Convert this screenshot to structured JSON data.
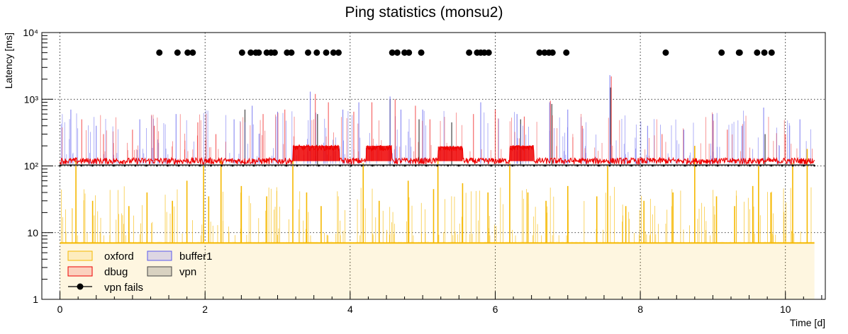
{
  "chart_data": {
    "type": "line",
    "title": "Ping statistics (monsu2)",
    "xlabel": "Time [d]",
    "ylabel": "Latency [ms]",
    "xlim": [
      -0.25,
      10.55
    ],
    "ylim": [
      1,
      10000
    ],
    "yscale": "log",
    "grid": true,
    "legend_position": "bottom-left",
    "x_ticks": [
      0,
      2,
      4,
      6,
      8,
      10
    ],
    "x_tick_labels": [
      "0",
      "2",
      "4",
      "6",
      "8",
      "10"
    ],
    "y_ticks": [
      1,
      10,
      100,
      1000,
      10000
    ],
    "y_tick_labels": [
      "1",
      "10",
      "10²",
      "10³",
      "10⁴"
    ],
    "series": [
      {
        "name": "oxford",
        "color": "#f5b800",
        "baseline": 7,
        "spikes": [
          [
            0.22,
            120
          ],
          [
            0.45,
            30
          ],
          [
            0.95,
            25
          ],
          [
            1.2,
            40
          ],
          [
            1.55,
            30
          ],
          [
            1.75,
            60
          ],
          [
            1.98,
            110
          ],
          [
            2.05,
            35
          ],
          [
            2.22,
            120
          ],
          [
            2.5,
            50
          ],
          [
            2.85,
            35
          ],
          [
            3.21,
            130
          ],
          [
            3.4,
            40
          ],
          [
            3.6,
            25
          ],
          [
            4.18,
            110
          ],
          [
            4.4,
            30
          ],
          [
            4.8,
            60
          ],
          [
            5.15,
            45
          ],
          [
            5.21,
            120
          ],
          [
            5.55,
            55
          ],
          [
            5.9,
            40
          ],
          [
            6.2,
            110
          ],
          [
            6.45,
            40
          ],
          [
            6.7,
            30
          ],
          [
            7.0,
            50
          ],
          [
            7.4,
            35
          ],
          [
            7.55,
            100
          ],
          [
            7.8,
            25
          ],
          [
            8.05,
            30
          ],
          [
            8.45,
            40
          ],
          [
            8.75,
            200
          ],
          [
            9.05,
            35
          ],
          [
            9.3,
            25
          ],
          [
            9.55,
            50
          ],
          [
            9.63,
            100
          ],
          [
            9.8,
            40
          ],
          [
            10.1,
            110
          ],
          [
            10.3,
            180
          ]
        ]
      },
      {
        "name": "dbug",
        "color": "#ee0000",
        "baseline": 118,
        "plateaus": [
          [
            3.21,
            3.85,
            200
          ],
          [
            4.22,
            4.57,
            200
          ],
          [
            5.21,
            5.55,
            195
          ],
          [
            6.2,
            6.53,
            200
          ]
        ],
        "spikes": [
          [
            0.3,
            500
          ],
          [
            0.6,
            300
          ],
          [
            1.0,
            350
          ],
          [
            1.3,
            400
          ],
          [
            1.9,
            450
          ],
          [
            2.15,
            300
          ],
          [
            2.8,
            600
          ],
          [
            3.1,
            700
          ],
          [
            3.52,
            1200
          ],
          [
            3.7,
            900
          ],
          [
            4.05,
            650
          ],
          [
            4.3,
            900
          ],
          [
            4.62,
            1000
          ],
          [
            4.9,
            800
          ],
          [
            5.1,
            500
          ],
          [
            5.7,
            600
          ],
          [
            6.0,
            700
          ],
          [
            6.4,
            550
          ],
          [
            6.76,
            950
          ],
          [
            7.2,
            400
          ],
          [
            7.6,
            2200
          ],
          [
            8.3,
            300
          ],
          [
            9.2,
            350
          ],
          [
            10.0,
            300
          ]
        ]
      },
      {
        "name": "buffer1",
        "color": "#5a5aee",
        "baseline": 108,
        "spikes": [
          [
            0.15,
            700
          ],
          [
            0.5,
            400
          ],
          [
            1.1,
            500
          ],
          [
            1.6,
            600
          ],
          [
            2.4,
            500
          ],
          [
            2.65,
            800
          ],
          [
            3.0,
            650
          ],
          [
            3.45,
            1300
          ],
          [
            3.9,
            700
          ],
          [
            4.12,
            900
          ],
          [
            4.55,
            1100
          ],
          [
            4.7,
            700
          ],
          [
            5.0,
            700
          ],
          [
            5.8,
            900
          ],
          [
            6.3,
            600
          ],
          [
            6.75,
            900
          ],
          [
            7.0,
            700
          ],
          [
            7.58,
            2300
          ],
          [
            8.1,
            400
          ],
          [
            8.6,
            350
          ],
          [
            9.0,
            600
          ],
          [
            9.4,
            400
          ],
          [
            9.7,
            750
          ],
          [
            10.2,
            500
          ]
        ]
      },
      {
        "name": "vpn",
        "color": "#444444",
        "baseline": 103,
        "spikes": [
          [
            2.55,
            700
          ],
          [
            3.55,
            600
          ],
          [
            4.55,
            1000
          ],
          [
            4.95,
            500
          ],
          [
            5.4,
            450
          ],
          [
            6.35,
            500
          ],
          [
            6.78,
            850
          ],
          [
            7.59,
            1500
          ],
          [
            9.72,
            300
          ]
        ]
      }
    ],
    "markers": {
      "name": "vpn fails",
      "color": "#000000",
      "y": 5000,
      "x": [
        1.37,
        1.62,
        1.76,
        1.83,
        2.51,
        2.63,
        2.7,
        2.74,
        2.85,
        2.91,
        2.96,
        3.13,
        3.19,
        3.42,
        3.54,
        3.67,
        3.77,
        3.84,
        4.58,
        4.65,
        4.75,
        4.81,
        4.98,
        5.64,
        5.75,
        5.8,
        5.85,
        5.91,
        6.61,
        6.68,
        6.74,
        6.79,
        6.98,
        8.35,
        9.12,
        9.36,
        9.37,
        9.61,
        9.71,
        9.81
      ]
    }
  }
}
